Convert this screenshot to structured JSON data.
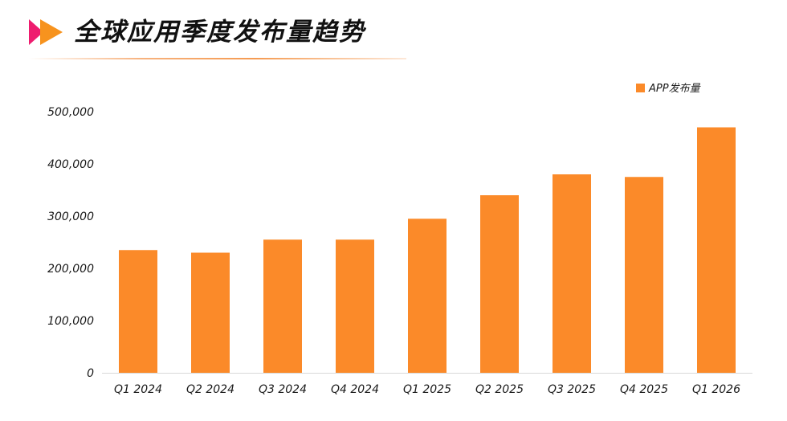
{
  "header": {
    "title": "全球应用季度发布量趋势"
  },
  "colors": {
    "bar": "#fb8a29",
    "logo_pink": "#ee1c6f",
    "logo_orange": "#f7931e",
    "axis": "#d9d9d9"
  },
  "chart_data": {
    "type": "bar",
    "title": "",
    "xlabel": "",
    "ylabel": "",
    "categories": [
      "Q1 2024",
      "Q2 2024",
      "Q3 2024",
      "Q4 2024",
      "Q1 2025",
      "Q2 2025",
      "Q3 2025",
      "Q4 2025",
      "Q1 2026"
    ],
    "series": [
      {
        "name": "APP发布量",
        "values": [
          235000,
          230000,
          255000,
          255000,
          295000,
          340000,
          380000,
          375000,
          470000
        ]
      }
    ],
    "ylim": [
      0,
      500000
    ],
    "yticks": [
      0,
      100000,
      200000,
      300000,
      400000,
      500000
    ],
    "ytick_labels": [
      "0",
      "100,000",
      "200,000",
      "300,000",
      "400,000",
      "500,000"
    ],
    "grid": false,
    "legend_position": "top-right"
  }
}
